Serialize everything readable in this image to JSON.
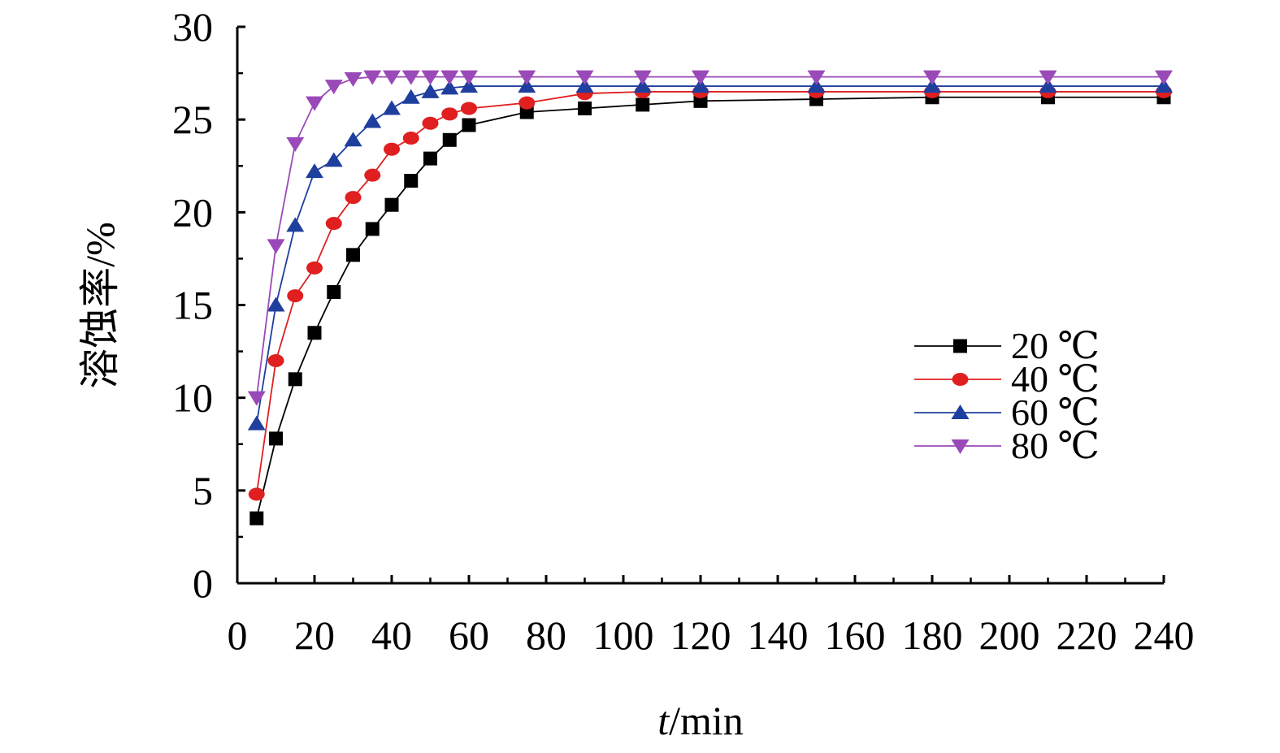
{
  "chart_data": {
    "type": "line",
    "title": "",
    "xlabel_italic": "t",
    "xlabel_rest": "/min",
    "ylabel": "溶蚀率/%",
    "xlim": [
      0,
      240
    ],
    "ylim": [
      0,
      30
    ],
    "x_ticks": [
      0,
      20,
      40,
      60,
      80,
      100,
      120,
      140,
      160,
      180,
      200,
      220,
      240
    ],
    "y_ticks": [
      0,
      5,
      10,
      15,
      20,
      25,
      30
    ],
    "grid": false,
    "legend_position": "right-middle",
    "series": [
      {
        "name": "20 ℃",
        "color": "#000000",
        "marker": "square",
        "x": [
          5,
          10,
          15,
          20,
          25,
          30,
          35,
          40,
          45,
          50,
          55,
          60,
          75,
          90,
          105,
          120,
          150,
          180,
          210,
          240
        ],
        "y": [
          3.5,
          7.8,
          11.0,
          13.5,
          15.7,
          17.7,
          19.1,
          20.4,
          21.7,
          22.9,
          23.9,
          24.7,
          25.4,
          25.6,
          25.8,
          26.0,
          26.1,
          26.2,
          26.2,
          26.2
        ]
      },
      {
        "name": "40 ℃",
        "color": "#e02020",
        "marker": "circle",
        "x": [
          5,
          10,
          15,
          20,
          25,
          30,
          35,
          40,
          45,
          50,
          55,
          60,
          75,
          90,
          105,
          120,
          150,
          180,
          210,
          240
        ],
        "y": [
          4.8,
          12.0,
          15.5,
          17.0,
          19.4,
          20.8,
          22.0,
          23.4,
          24.0,
          24.8,
          25.3,
          25.6,
          25.9,
          26.4,
          26.5,
          26.5,
          26.5,
          26.5,
          26.5,
          26.5
        ]
      },
      {
        "name": "60 ℃",
        "color": "#1f3f9e",
        "marker": "triangle-up",
        "x": [
          5,
          10,
          15,
          20,
          25,
          30,
          35,
          40,
          45,
          50,
          55,
          60,
          75,
          90,
          105,
          120,
          150,
          180,
          210,
          240
        ],
        "y": [
          8.6,
          15.0,
          19.3,
          22.2,
          22.8,
          23.9,
          24.9,
          25.6,
          26.2,
          26.5,
          26.7,
          26.8,
          26.8,
          26.8,
          26.8,
          26.8,
          26.8,
          26.8,
          26.8,
          26.8
        ]
      },
      {
        "name": "80 ℃",
        "color": "#9a4ab8",
        "marker": "triangle-down",
        "x": [
          5,
          10,
          15,
          20,
          25,
          30,
          35,
          40,
          45,
          50,
          55,
          60,
          75,
          90,
          105,
          120,
          150,
          180,
          210,
          240
        ],
        "y": [
          10.0,
          18.2,
          23.7,
          25.9,
          26.8,
          27.2,
          27.3,
          27.3,
          27.3,
          27.3,
          27.3,
          27.3,
          27.3,
          27.3,
          27.3,
          27.3,
          27.3,
          27.3,
          27.3,
          27.3
        ]
      }
    ]
  }
}
